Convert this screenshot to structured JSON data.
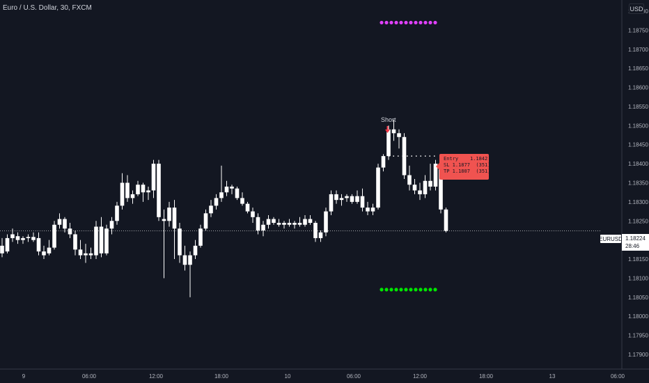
{
  "title": "Euro / U.S. Dollar, 30, FXCM",
  "currency": "USD",
  "symbol": "EURUSD",
  "last_price": "1.18224",
  "countdown": "28:46",
  "signal_label": "Short",
  "trade_box": {
    "entry_label": "Entry",
    "entry_value": "1.1842",
    "sl_label": "SL",
    "sl_value": "1.1877",
    "sl_pips": "(351)",
    "tp_label": "TP",
    "tp_value": "1.1807",
    "tp_pips": "(351)"
  },
  "colors": {
    "background": "#131722",
    "candle": "#ffffff",
    "grid_separator": "#363a45",
    "stop_dots": "#e040fb",
    "target_dots": "#00e600",
    "signal_arrow": "#f23645",
    "trade_box": "#f05350"
  },
  "chart_data": {
    "type": "candlestick",
    "y_axis_ticks": [
      "1.18800",
      "1.18750",
      "1.18700",
      "1.18650",
      "1.18600",
      "1.18550",
      "1.18500",
      "1.18450",
      "1.18400",
      "1.18350",
      "1.18300",
      "1.18250",
      "1.18200",
      "1.18150",
      "1.18100",
      "1.18050",
      "1.18000",
      "1.17950",
      "1.17900"
    ],
    "ylim": [
      1.1786,
      1.1884
    ],
    "x_axis_ticks": [
      "9",
      "06:00",
      "12:00",
      "18:00",
      "10",
      "06:00",
      "12:00",
      "18:00",
      "13",
      "06:00"
    ],
    "last_price": 1.18224,
    "stop_level": 1.1877,
    "target_level": 1.1807,
    "entry_level": 1.1842,
    "ohlc": [
      [
        1.18185,
        1.18205,
        1.18155,
        1.18165
      ],
      [
        1.1817,
        1.18215,
        1.18165,
        1.18205
      ],
      [
        1.18205,
        1.1823,
        1.18195,
        1.18215
      ],
      [
        1.1821,
        1.1822,
        1.1819,
        1.182
      ],
      [
        1.182,
        1.1821,
        1.1819,
        1.18205
      ],
      [
        1.18205,
        1.18215,
        1.18195,
        1.18208
      ],
      [
        1.18208,
        1.1822,
        1.18195,
        1.182
      ],
      [
        1.18205,
        1.1822,
        1.1816,
        1.1817
      ],
      [
        1.1817,
        1.18185,
        1.1815,
        1.1816
      ],
      [
        1.18165,
        1.182,
        1.1816,
        1.1818
      ],
      [
        1.1818,
        1.1825,
        1.18175,
        1.1824
      ],
      [
        1.1824,
        1.1827,
        1.1823,
        1.18255
      ],
      [
        1.18255,
        1.1826,
        1.1822,
        1.1823
      ],
      [
        1.1823,
        1.18245,
        1.18205,
        1.18215
      ],
      [
        1.18215,
        1.18225,
        1.1816,
        1.18175
      ],
      [
        1.18175,
        1.182,
        1.1815,
        1.1816
      ],
      [
        1.1816,
        1.1819,
        1.1814,
        1.18165
      ],
      [
        1.18165,
        1.1818,
        1.1815,
        1.1816
      ],
      [
        1.1816,
        1.1825,
        1.1815,
        1.18235
      ],
      [
        1.18235,
        1.1826,
        1.18155,
        1.18165
      ],
      [
        1.18165,
        1.1824,
        1.1816,
        1.1823
      ],
      [
        1.1823,
        1.1826,
        1.18215,
        1.1825
      ],
      [
        1.1825,
        1.183,
        1.1824,
        1.1829
      ],
      [
        1.1829,
        1.18375,
        1.1828,
        1.1835
      ],
      [
        1.1835,
        1.1837,
        1.183,
        1.1831
      ],
      [
        1.1831,
        1.1833,
        1.18295,
        1.1832
      ],
      [
        1.1832,
        1.18355,
        1.18315,
        1.18345
      ],
      [
        1.18345,
        1.1835,
        1.183,
        1.18325
      ],
      [
        1.18325,
        1.1834,
        1.18305,
        1.1833
      ],
      [
        1.1833,
        1.1841,
        1.1831,
        1.184
      ],
      [
        1.184,
        1.1841,
        1.1825,
        1.1826
      ],
      [
        1.18255,
        1.1828,
        1.181,
        1.1825
      ],
      [
        1.1825,
        1.183,
        1.18235,
        1.18285
      ],
      [
        1.18285,
        1.18305,
        1.1815,
        1.1823
      ],
      [
        1.1823,
        1.18245,
        1.1814,
        1.1816
      ],
      [
        1.1816,
        1.18185,
        1.1812,
        1.18135
      ],
      [
        1.18135,
        1.1817,
        1.1805,
        1.1816
      ],
      [
        1.1816,
        1.182,
        1.1815,
        1.18185
      ],
      [
        1.18185,
        1.1824,
        1.1818,
        1.1823
      ],
      [
        1.1823,
        1.1828,
        1.18225,
        1.1827
      ],
      [
        1.1827,
        1.18305,
        1.1826,
        1.1829
      ],
      [
        1.1829,
        1.1832,
        1.1828,
        1.1831
      ],
      [
        1.1831,
        1.18395,
        1.183,
        1.18325
      ],
      [
        1.18325,
        1.18355,
        1.18315,
        1.1834
      ],
      [
        1.1834,
        1.18345,
        1.1832,
        1.18335
      ],
      [
        1.18335,
        1.1834,
        1.18305,
        1.1831
      ],
      [
        1.1831,
        1.18325,
        1.1829,
        1.18295
      ],
      [
        1.18295,
        1.183,
        1.1827,
        1.18275
      ],
      [
        1.18275,
        1.18285,
        1.18245,
        1.1826
      ],
      [
        1.1826,
        1.1827,
        1.18215,
        1.18225
      ],
      [
        1.18225,
        1.1825,
        1.1821,
        1.1824
      ],
      [
        1.1824,
        1.18265,
        1.1823,
        1.18255
      ],
      [
        1.18255,
        1.1826,
        1.1824,
        1.18245
      ],
      [
        1.18245,
        1.18255,
        1.18235,
        1.1824
      ],
      [
        1.1824,
        1.1825,
        1.1823,
        1.18245
      ],
      [
        1.18245,
        1.18255,
        1.18235,
        1.1824
      ],
      [
        1.1824,
        1.1825,
        1.1823,
        1.18245
      ],
      [
        1.18245,
        1.1826,
        1.18235,
        1.1824
      ],
      [
        1.1824,
        1.18265,
        1.18235,
        1.18255
      ],
      [
        1.18255,
        1.18265,
        1.1824,
        1.18245
      ],
      [
        1.18245,
        1.1825,
        1.18195,
        1.18205
      ],
      [
        1.18205,
        1.18225,
        1.18195,
        1.1822
      ],
      [
        1.1822,
        1.18285,
        1.1821,
        1.18275
      ],
      [
        1.18275,
        1.1833,
        1.18265,
        1.1832
      ],
      [
        1.1832,
        1.1833,
        1.18295,
        1.18305
      ],
      [
        1.18305,
        1.1832,
        1.1829,
        1.1831
      ],
      [
        1.1831,
        1.1832,
        1.183,
        1.18315
      ],
      [
        1.18315,
        1.1832,
        1.18295,
        1.183
      ],
      [
        1.183,
        1.1833,
        1.18295,
        1.18315
      ],
      [
        1.18315,
        1.18335,
        1.18275,
        1.18285
      ],
      [
        1.18285,
        1.183,
        1.18265,
        1.18275
      ],
      [
        1.18275,
        1.18295,
        1.18265,
        1.18285
      ],
      [
        1.18285,
        1.184,
        1.1828,
        1.1839
      ],
      [
        1.1839,
        1.18425,
        1.1838,
        1.1842
      ],
      [
        1.1842,
        1.185,
        1.1841,
        1.1849
      ],
      [
        1.1849,
        1.18515,
        1.1846,
        1.1848
      ],
      [
        1.1848,
        1.1849,
        1.1844,
        1.1847
      ],
      [
        1.1847,
        1.1848,
        1.1836,
        1.1837
      ],
      [
        1.1837,
        1.18395,
        1.1833,
        1.18345
      ],
      [
        1.18345,
        1.1836,
        1.1832,
        1.1833
      ],
      [
        1.1833,
        1.1835,
        1.18305,
        1.1832
      ],
      [
        1.1832,
        1.1837,
        1.1831,
        1.18355
      ],
      [
        1.18355,
        1.184,
        1.1833,
        1.1834
      ],
      [
        1.1834,
        1.1841,
        1.1833,
        1.184
      ],
      [
        1.184,
        1.1841,
        1.1827,
        1.1828
      ],
      [
        1.1828,
        1.18285,
        1.1822,
        1.18224
      ]
    ]
  }
}
